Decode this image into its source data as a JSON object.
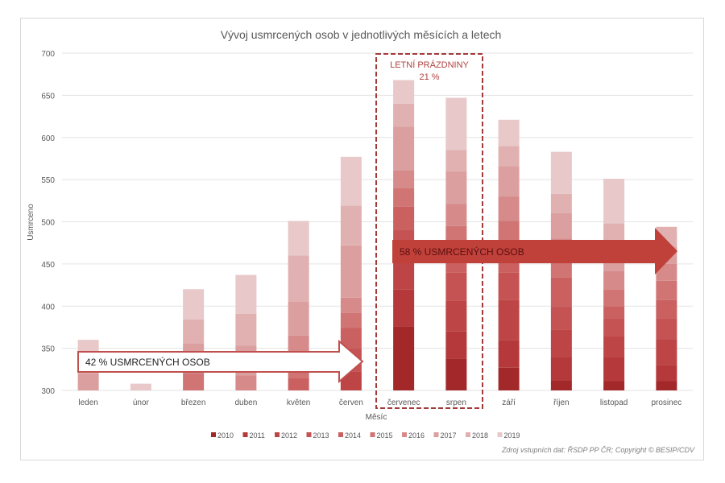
{
  "chart_data": {
    "type": "bar",
    "mode": "overlapping stacked bars (each year's value drawn as band top)",
    "title": "Vývoj usmrcených osob v jednotlivých měsících a letech",
    "xlabel": "Měsíc",
    "ylabel": "Usmrceno",
    "ylim": [
      300,
      700
    ],
    "yticks": [
      300,
      350,
      400,
      450,
      500,
      550,
      600,
      650,
      700
    ],
    "grid": true,
    "legend_position": "bottom",
    "categories": [
      "leden",
      "únor",
      "březen",
      "duben",
      "květen",
      "červen",
      "červenec",
      "srpen",
      "září",
      "říjen",
      "listopad",
      "prosinec"
    ],
    "series": [
      {
        "name": "2010",
        "color": "#a3282a",
        "values": [
          300,
          300,
          300,
          300,
          300,
          300,
          376,
          338,
          327,
          312,
          311,
          311
        ]
      },
      {
        "name": "2011",
        "color": "#b5393a",
        "values": [
          300,
          300,
          300,
          300,
          300,
          300,
          420,
          370,
          360,
          340,
          340,
          330
        ]
      },
      {
        "name": "2012",
        "color": "#bd4545",
        "values": [
          300,
          300,
          300,
          300,
          300,
          322,
          455,
          406,
          407,
          372,
          364,
          361
        ]
      },
      {
        "name": "2013",
        "color": "#c55353",
        "values": [
          300,
          300,
          300,
          300,
          300,
          350,
          490,
          440,
          440,
          400,
          385,
          385
        ]
      },
      {
        "name": "2014",
        "color": "#ca6060",
        "values": [
          300,
          300,
          300,
          300,
          315,
          374,
          518,
          470,
          470,
          434,
          400,
          407
        ]
      },
      {
        "name": "2015",
        "color": "#d07474",
        "values": [
          300,
          300,
          320,
          300,
          330,
          392,
          540,
          495,
          501,
          455,
          420,
          430
        ]
      },
      {
        "name": "2016",
        "color": "#d68a8a",
        "values": [
          300,
          300,
          335,
          318,
          365,
          410,
          561,
          521,
          530,
          480,
          442,
          450
        ]
      },
      {
        "name": "2017",
        "color": "#dc9f9f",
        "values": [
          320,
          300,
          356,
          353,
          405,
          472,
          613,
          560,
          566,
          510,
          470,
          470
        ]
      },
      {
        "name": "2018",
        "color": "#e1b1b1",
        "values": [
          340,
          300,
          384,
          391,
          460,
          519,
          640,
          585,
          590,
          533,
          498,
          494
        ]
      },
      {
        "name": "2019",
        "color": "#e8c8c8",
        "values": [
          360,
          308,
          420,
          437,
          501,
          577,
          668,
          647,
          621,
          583,
          551,
          494
        ]
      }
    ],
    "annotations": {
      "summer_box_title": "LETNÍ PRÁZDNINY",
      "summer_box_percent": "21 %",
      "left_arrow": "42 % USMRCENÝCH OSOB",
      "right_arrow": "58 % USMRCENÝCH OSOB"
    },
    "source": "Zdroj vstupních dat: ŘSDP PP ČR; Copyright © BESIP/CDV"
  }
}
